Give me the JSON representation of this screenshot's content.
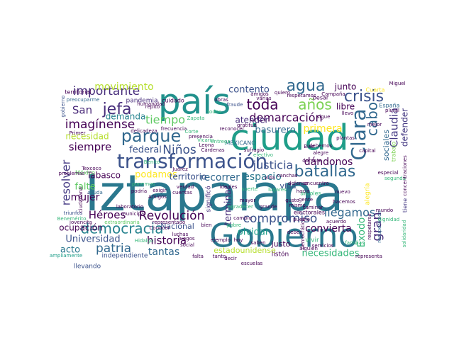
{
  "palette": {
    "c1": "#2a788e",
    "c2": "#5ec962",
    "c3": "#3b528b",
    "c4": "#440154",
    "c5": "#21918c",
    "c6": "#7ad151",
    "c7": "#482878",
    "c8": "#b5de2b",
    "c9": "#31688e",
    "c10": "#35b779",
    "c11": "#fde725",
    "c12": "#1f9e89",
    "c13": "#26828e",
    "c14": "#472d7b",
    "c15": "#443983"
  },
  "words": [
    {
      "t": "Iztapalapa"
    },
    {
      "t": "país"
    },
    {
      "t": "Gobierno"
    },
    {
      "t": "ciudad"
    },
    {
      "t": "transformación"
    },
    {
      "t": "Clara"
    },
    {
      "t": "crisis"
    },
    {
      "t": "agua"
    },
    {
      "t": "parque"
    },
    {
      "t": "batallas"
    },
    {
      "t": "años"
    },
    {
      "t": "democracia"
    },
    {
      "t": "jefa"
    },
    {
      "t": "importante"
    },
    {
      "t": "demarcación"
    },
    {
      "t": "toda"
    },
    {
      "t": "imagínense"
    },
    {
      "t": "Revolución"
    },
    {
      "t": "Héroes"
    },
    {
      "t": "patria"
    },
    {
      "t": "compromiso"
    },
    {
      "t": "llegamos"
    },
    {
      "t": "cabo"
    },
    {
      "t": "gran"
    },
    {
      "t": "justicia"
    },
    {
      "t": "resolver"
    },
    {
      "t": "movimiento"
    },
    {
      "t": "Niños"
    },
    {
      "t": "tiempo"
    },
    {
      "t": "San"
    },
    {
      "t": "Claudia"
    },
    {
      "t": "defender"
    },
    {
      "t": "siempre"
    },
    {
      "t": "espacio"
    },
    {
      "t": "dándonos"
    },
    {
      "t": "contento"
    },
    {
      "t": "atender"
    },
    {
      "t": "recorrer"
    },
    {
      "t": "basurero"
    },
    {
      "t": "primera"
    },
    {
      "t": "necesidad"
    },
    {
      "t": "federal"
    },
    {
      "t": "Tabasco"
    },
    {
      "t": "mujer"
    },
    {
      "t": "podamos"
    },
    {
      "t": "falte"
    },
    {
      "t": "Universidad"
    },
    {
      "t": "historia"
    },
    {
      "t": "acto"
    },
    {
      "t": "tantas"
    },
    {
      "t": "convierta"
    },
    {
      "t": "necesidades"
    },
    {
      "t": "olvidar"
    },
    {
      "t": "terminar"
    },
    {
      "t": "Éxodo"
    },
    {
      "t": "junto"
    },
    {
      "t": "libre"
    },
    {
      "t": "demanda"
    },
    {
      "t": "ocupación"
    },
    {
      "t": "territorio"
    },
    {
      "t": "sociales"
    },
    {
      "t": "vida"
    },
    {
      "t": "Nacional"
    },
    {
      "t": "estadounidense"
    },
    {
      "t": "justo"
    },
    {
      "t": "Cuarta"
    },
    {
      "t": "vivir"
    },
    {
      "t": "pandemia"
    },
    {
      "t": "cuidado"
    },
    {
      "t": "México"
    },
    {
      "t": "trabajo"
    },
    {
      "t": "tiene"
    },
    {
      "t": "llevando"
    },
    {
      "t": "Cárdenas"
    },
    {
      "t": "listón"
    },
    {
      "t": "independiente"
    },
    {
      "t": "significó"
    },
    {
      "t": "MEXICANO"
    },
    {
      "t": "pesar"
    },
    {
      "t": "España"
    },
    {
      "t": "Miguel"
    },
    {
      "t": "fraude"
    },
    {
      "t": "árboles"
    },
    {
      "t": "alegría"
    },
    {
      "t": "electorales"
    },
    {
      "t": "laboratorio"
    },
    {
      "t": "municipal"
    },
    {
      "t": "triunfos"
    },
    {
      "t": "extraordinaria"
    },
    {
      "t": "representado"
    },
    {
      "t": "problemas"
    },
    {
      "t": "preocuparme"
    },
    {
      "t": "territorial"
    },
    {
      "t": "delicadeza"
    },
    {
      "t": "frecuencia"
    },
    {
      "t": "amigos"
    },
    {
      "t": "respetamos"
    },
    {
      "t": "humanidad"
    },
    {
      "t": "especial"
    },
    {
      "t": "segunda"
    },
    {
      "t": "capital"
    },
    {
      "t": "gusto"
    },
    {
      "t": "hacia"
    },
    {
      "t": "Leona"
    },
    {
      "t": "Vicario"
    },
    {
      "t": "ayuda"
    },
    {
      "t": "pueblo"
    },
    {
      "t": "saben"
    },
    {
      "t": "representa"
    },
    {
      "t": "respetarse"
    },
    {
      "t": "concentraciones"
    },
    {
      "t": "presencia"
    },
    {
      "t": "Corte"
    },
    {
      "t": "canchas"
    },
    {
      "t": "cuentas"
    },
    {
      "t": "entrega"
    },
    {
      "t": "Conocer"
    },
    {
      "t": "juegos"
    },
    {
      "t": "jovencita"
    },
    {
      "t": "recuperación"
    },
    {
      "t": "solidaridad"
    },
    {
      "t": "gobierno"
    },
    {
      "t": "ciudadana"
    },
    {
      "t": "Benemérito"
    },
    {
      "t": "ampliamente"
    },
    {
      "t": "dignidad"
    },
    {
      "t": "Primer"
    },
    {
      "t": "Texcoco"
    },
    {
      "t": "sigue"
    },
    {
      "t": "debemos"
    },
    {
      "t": "Bien"
    },
    {
      "t": "plural"
    },
    {
      "t": "Benito"
    },
    {
      "t": "Juárez"
    },
    {
      "t": "Zapata"
    },
    {
      "t": "ideales"
    },
    {
      "t": "varias"
    },
    {
      "t": "repito"
    },
    {
      "t": "llevo"
    },
    {
      "t": "podría"
    },
    {
      "t": "ponemos"
    },
    {
      "t": "plantas"
    },
    {
      "t": "durante"
    },
    {
      "t": "exigir"
    },
    {
      "t": "suerte"
    },
    {
      "t": "encuentro"
    },
    {
      "t": "lugares"
    },
    {
      "t": "nuevo"
    },
    {
      "t": "hacemos"
    },
    {
      "t": "agradecer"
    },
    {
      "t": "mayor"
    },
    {
      "t": "grande"
    },
    {
      "t": "mismo"
    },
    {
      "t": "acuerdo"
    },
    {
      "t": "familias"
    },
    {
      "t": "alguien"
    },
    {
      "t": "vida"
    },
    {
      "t": "gente"
    },
    {
      "t": "verdad"
    },
    {
      "t": "ejemplo"
    },
    {
      "t": "tanto"
    },
    {
      "t": "social"
    },
    {
      "t": "cambio"
    },
    {
      "t": "pobre"
    },
    {
      "t": "luchas"
    },
    {
      "t": "Amigos"
    },
    {
      "t": "gratitud"
    },
    {
      "t": "reconocer"
    },
    {
      "t": "caminar"
    },
    {
      "t": "defensa"
    },
    {
      "t": "sufragio"
    },
    {
      "t": "efectivo"
    },
    {
      "t": "alegre"
    },
    {
      "t": "mejor"
    },
    {
      "t": "mundo"
    },
    {
      "t": "decir"
    },
    {
      "t": "escuelas"
    },
    {
      "t": "Campaña"
    },
    {
      "t": "quiero"
    },
    {
      "t": "obras"
    },
    {
      "t": "todos"
    },
    {
      "t": "falta"
    },
    {
      "t": "Hidalgo"
    },
    {
      "t": "bien"
    },
    {
      "t": "hoy"
    },
    {
      "t": "democrático"
    },
    {
      "t": "deber"
    },
    {
      "t": "servicios"
    }
  ]
}
